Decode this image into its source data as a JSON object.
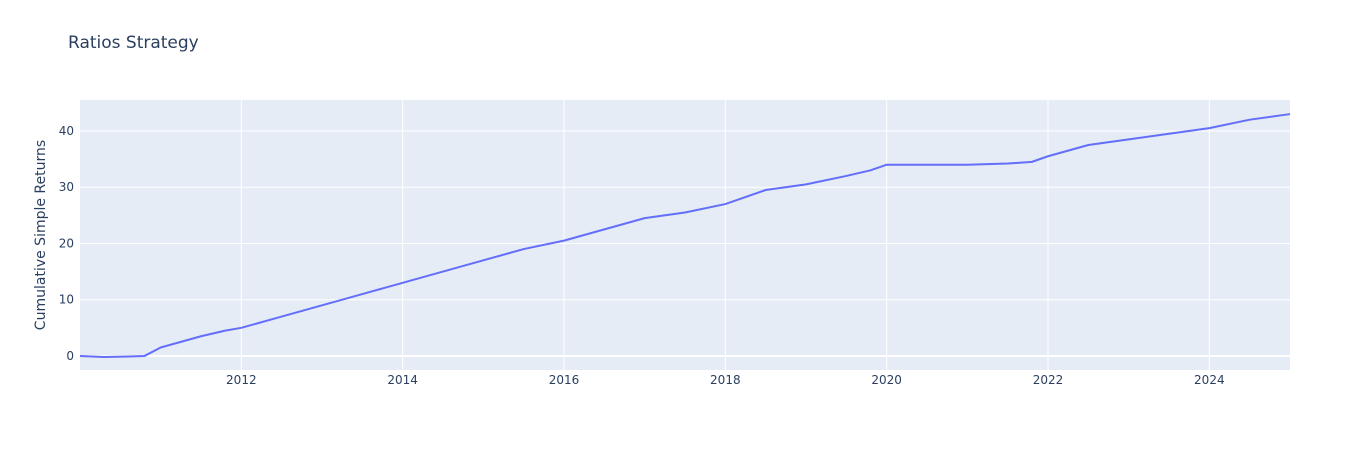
{
  "chart_data": {
    "type": "line",
    "title": "Ratios Strategy",
    "xlabel": "",
    "ylabel": "Cumulative Simple Returns",
    "xlim": [
      2010.0,
      2025.0
    ],
    "ylim": [
      -2.5,
      45.5
    ],
    "x_ticks": [
      2012,
      2014,
      2016,
      2018,
      2020,
      2022,
      2024
    ],
    "x_tick_labels": [
      "2012",
      "2014",
      "2016",
      "2018",
      "2020",
      "2022",
      "2024"
    ],
    "y_ticks": [
      0,
      10,
      20,
      30,
      40
    ],
    "y_tick_labels": [
      "0",
      "10",
      "20",
      "30",
      "40"
    ],
    "grid": true,
    "legend": "none",
    "colors": {
      "plot_background": "#e5ecf6",
      "grid": "#ffffff",
      "line": "#636efa",
      "text": "#2a3f5f",
      "tick_text": "#2a3f5f"
    },
    "series": [
      {
        "x": [
          2010.0,
          2010.3,
          2010.6,
          2010.8,
          2011.0,
          2011.5,
          2011.8,
          2012.0,
          2012.5,
          2013.0,
          2013.5,
          2014.0,
          2014.5,
          2015.0,
          2015.5,
          2016.0,
          2016.5,
          2017.0,
          2017.5,
          2018.0,
          2018.5,
          2019.0,
          2019.5,
          2019.8,
          2020.0,
          2020.5,
          2021.0,
          2021.5,
          2021.6,
          2021.8,
          2022.0,
          2022.5,
          2023.0,
          2023.5,
          2024.0,
          2024.5,
          2025.0
        ],
        "y": [
          0.0,
          -0.2,
          -0.1,
          0.0,
          1.5,
          3.5,
          4.5,
          5.0,
          7.0,
          9.0,
          11.0,
          13.0,
          15.0,
          17.0,
          19.0,
          20.5,
          22.5,
          24.5,
          25.5,
          27.0,
          29.5,
          30.5,
          32.0,
          33.0,
          34.0,
          34.0,
          34.0,
          34.2,
          34.3,
          34.5,
          35.5,
          37.5,
          38.5,
          39.5,
          40.5,
          42.0,
          43.0
        ]
      }
    ]
  }
}
